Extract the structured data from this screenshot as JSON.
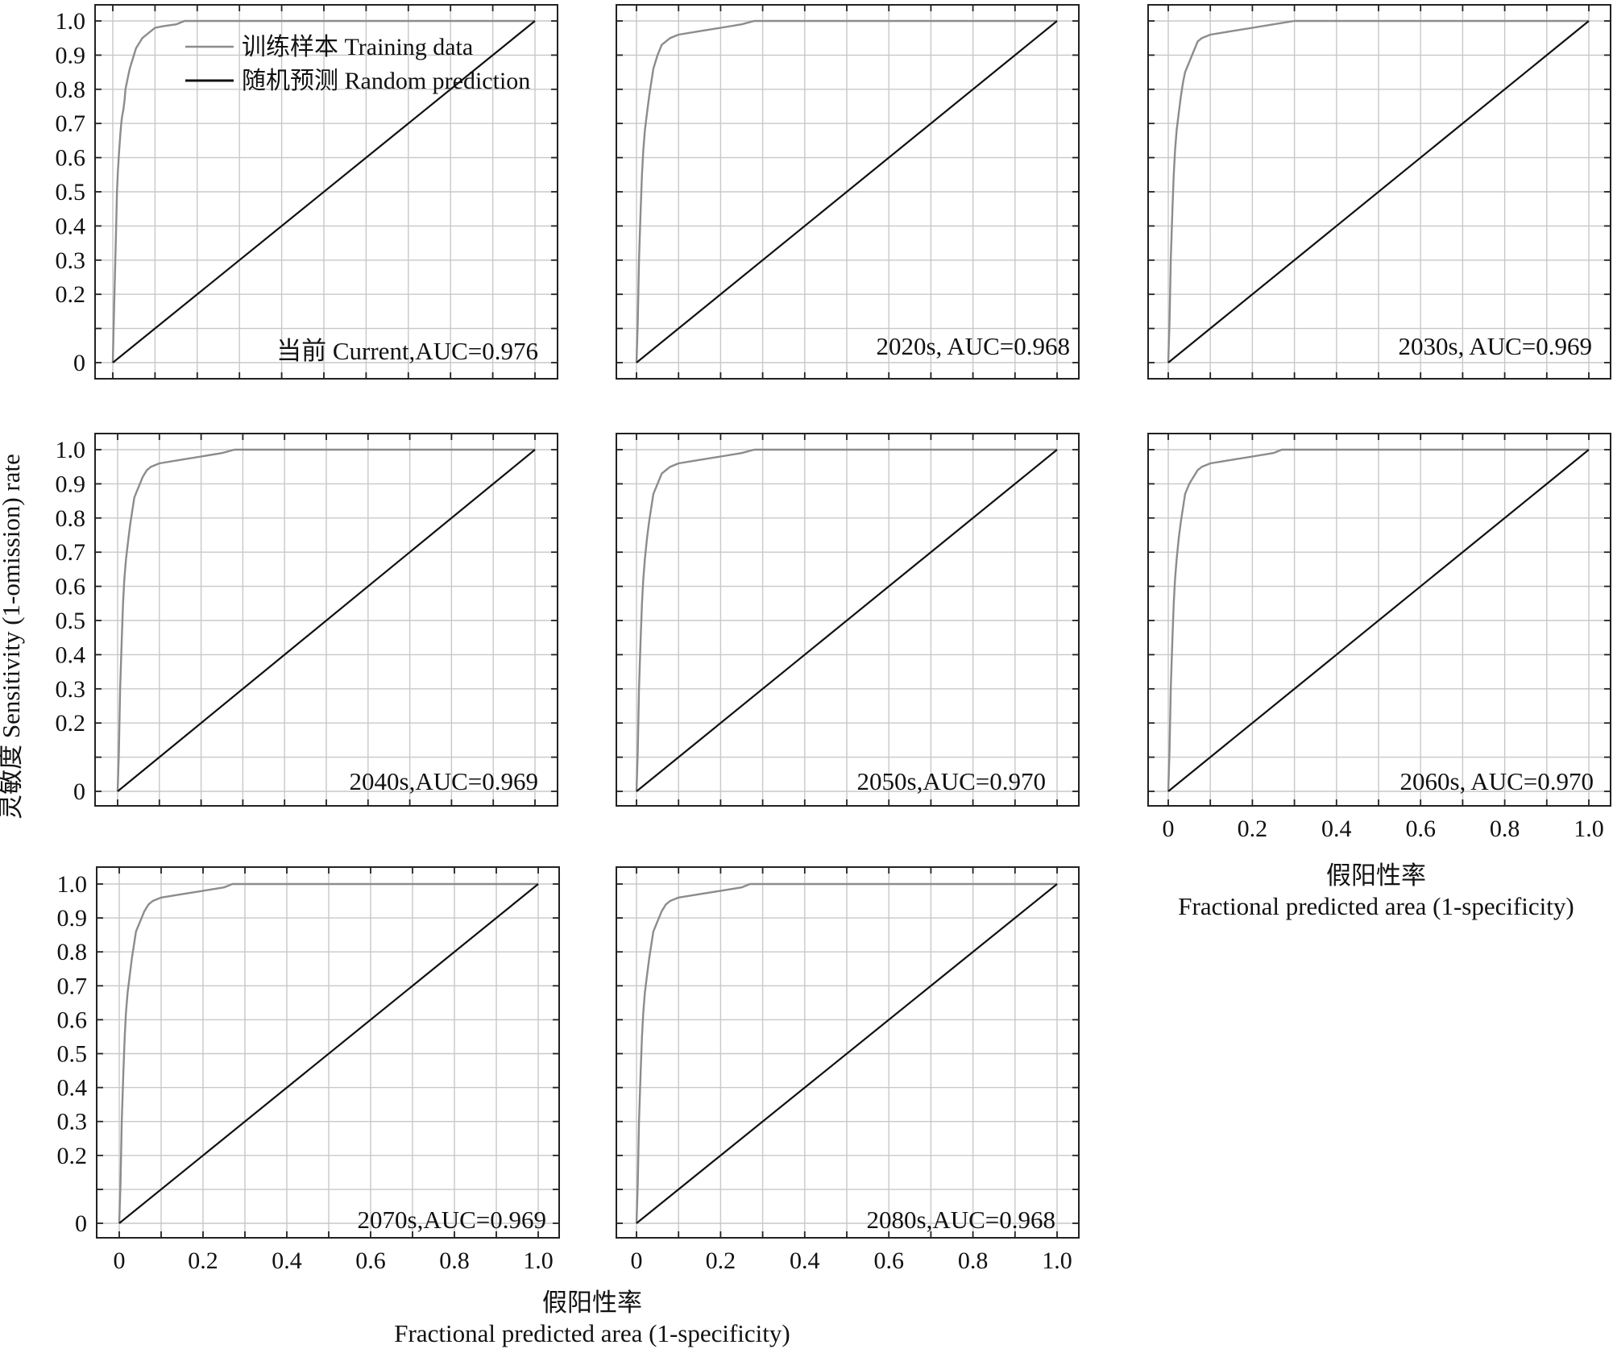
{
  "chart_data": [
    {
      "type": "line",
      "panel": "当前 Current",
      "annotation": "当前 Current,AUC=0.976",
      "auc": 0.976,
      "xlim": [
        0,
        1
      ],
      "ylim": [
        0,
        1
      ],
      "yticks": [
        "0",
        "0.2",
        "0.3",
        "0.4",
        "0.5",
        "0.6",
        "0.7",
        "0.8",
        "0.9",
        "1.0"
      ],
      "series": [
        {
          "name": "训练样本 Training data",
          "x": [
            0,
            0.002,
            0.005,
            0.008,
            0.01,
            0.012,
            0.015,
            0.018,
            0.02,
            0.022,
            0.025,
            0.028,
            0.03,
            0.035,
            0.04,
            0.045,
            0.05,
            0.055,
            0.06,
            0.07,
            0.08,
            0.09,
            0.1,
            0.12,
            0.15,
            0.17,
            0.2,
            1.0
          ],
          "y": [
            0,
            0.1,
            0.25,
            0.4,
            0.5,
            0.56,
            0.62,
            0.67,
            0.7,
            0.72,
            0.74,
            0.77,
            0.8,
            0.83,
            0.86,
            0.88,
            0.9,
            0.92,
            0.93,
            0.95,
            0.96,
            0.97,
            0.98,
            0.985,
            0.99,
            1.0,
            1.0,
            1.0
          ]
        },
        {
          "name": "随机预测 Random prediction",
          "x": [
            0,
            1
          ],
          "y": [
            0,
            1
          ]
        }
      ]
    },
    {
      "type": "line",
      "panel": "2020s",
      "annotation": "2020s, AUC=0.968",
      "auc": 0.968,
      "xlim": [
        0,
        1
      ],
      "ylim": [
        0,
        1
      ],
      "yticks": [],
      "series": [
        {
          "name": "训练样本 Training data",
          "x": [
            0,
            0.003,
            0.006,
            0.01,
            0.013,
            0.016,
            0.02,
            0.025,
            0.03,
            0.035,
            0.04,
            0.05,
            0.06,
            0.07,
            0.08,
            0.1,
            0.15,
            0.2,
            0.25,
            0.28,
            1.0
          ],
          "y": [
            0,
            0.12,
            0.3,
            0.45,
            0.55,
            0.62,
            0.68,
            0.73,
            0.78,
            0.82,
            0.86,
            0.9,
            0.93,
            0.94,
            0.95,
            0.96,
            0.97,
            0.98,
            0.99,
            1.0,
            1.0
          ]
        },
        {
          "name": "随机预测 Random prediction",
          "x": [
            0,
            1
          ],
          "y": [
            0,
            1
          ]
        }
      ]
    },
    {
      "type": "line",
      "panel": "2030s",
      "annotation": "2030s, AUC=0.969",
      "auc": 0.969,
      "xlim": [
        0,
        1
      ],
      "ylim": [
        0,
        1
      ],
      "yticks": [],
      "series": [
        {
          "name": "训练样本 Training data",
          "x": [
            0,
            0.003,
            0.006,
            0.01,
            0.013,
            0.016,
            0.02,
            0.025,
            0.03,
            0.035,
            0.04,
            0.05,
            0.06,
            0.07,
            0.08,
            0.1,
            0.15,
            0.2,
            0.25,
            0.3,
            1.0
          ],
          "y": [
            0,
            0.12,
            0.3,
            0.45,
            0.55,
            0.62,
            0.68,
            0.73,
            0.78,
            0.82,
            0.85,
            0.88,
            0.91,
            0.94,
            0.95,
            0.96,
            0.97,
            0.98,
            0.99,
            1.0,
            1.0
          ]
        },
        {
          "name": "随机预测 Random prediction",
          "x": [
            0,
            1
          ],
          "y": [
            0,
            1
          ]
        }
      ]
    },
    {
      "type": "line",
      "panel": "2040s",
      "annotation": "2040s,AUC=0.969",
      "auc": 0.969,
      "xlim": [
        0,
        1
      ],
      "ylim": [
        0,
        1
      ],
      "yticks": [
        "0",
        "0.2",
        "0.3",
        "0.4",
        "0.5",
        "0.6",
        "0.7",
        "0.8",
        "0.9",
        "1.0"
      ],
      "series": [
        {
          "name": "训练样本 Training data",
          "x": [
            0,
            0.003,
            0.006,
            0.01,
            0.013,
            0.016,
            0.02,
            0.025,
            0.03,
            0.035,
            0.04,
            0.05,
            0.06,
            0.07,
            0.08,
            0.1,
            0.15,
            0.2,
            0.25,
            0.28,
            1.0
          ],
          "y": [
            0,
            0.12,
            0.3,
            0.45,
            0.55,
            0.62,
            0.68,
            0.73,
            0.78,
            0.82,
            0.86,
            0.89,
            0.92,
            0.94,
            0.95,
            0.96,
            0.97,
            0.98,
            0.99,
            1.0,
            1.0
          ]
        },
        {
          "name": "随机预测 Random prediction",
          "x": [
            0,
            1
          ],
          "y": [
            0,
            1
          ]
        }
      ]
    },
    {
      "type": "line",
      "panel": "2050s",
      "annotation": "2050s,AUC=0.970",
      "auc": 0.97,
      "xlim": [
        0,
        1
      ],
      "ylim": [
        0,
        1
      ],
      "yticks": [],
      "series": [
        {
          "name": "训练样本 Training data",
          "x": [
            0,
            0.003,
            0.006,
            0.01,
            0.013,
            0.016,
            0.02,
            0.025,
            0.03,
            0.035,
            0.04,
            0.05,
            0.06,
            0.07,
            0.08,
            0.1,
            0.15,
            0.2,
            0.25,
            0.28,
            1.0
          ],
          "y": [
            0,
            0.12,
            0.3,
            0.45,
            0.55,
            0.62,
            0.68,
            0.74,
            0.79,
            0.83,
            0.87,
            0.9,
            0.93,
            0.94,
            0.95,
            0.96,
            0.97,
            0.98,
            0.99,
            1.0,
            1.0
          ]
        },
        {
          "name": "随机预测 Random prediction",
          "x": [
            0,
            1
          ],
          "y": [
            0,
            1
          ]
        }
      ]
    },
    {
      "type": "line",
      "panel": "2060s",
      "annotation": "2060s, AUC=0.970",
      "auc": 0.97,
      "xlim": [
        0,
        1
      ],
      "ylim": [
        0,
        1
      ],
      "yticks": [],
      "xticks": [
        "0",
        "0.2",
        "0.4",
        "0.6",
        "0.8",
        "1.0"
      ],
      "series": [
        {
          "name": "训练样本 Training data",
          "x": [
            0,
            0.003,
            0.006,
            0.01,
            0.013,
            0.016,
            0.02,
            0.025,
            0.03,
            0.035,
            0.04,
            0.05,
            0.06,
            0.07,
            0.08,
            0.1,
            0.15,
            0.2,
            0.25,
            0.27,
            1.0
          ],
          "y": [
            0,
            0.12,
            0.3,
            0.45,
            0.55,
            0.62,
            0.68,
            0.74,
            0.79,
            0.83,
            0.87,
            0.9,
            0.92,
            0.94,
            0.95,
            0.96,
            0.97,
            0.98,
            0.99,
            1.0,
            1.0
          ]
        },
        {
          "name": "随机预测 Random prediction",
          "x": [
            0,
            1
          ],
          "y": [
            0,
            1
          ]
        }
      ]
    },
    {
      "type": "line",
      "panel": "2070s",
      "annotation": "2070s,AUC=0.969",
      "auc": 0.969,
      "xlim": [
        0,
        1
      ],
      "ylim": [
        0,
        1
      ],
      "yticks": [
        "0",
        "0.2",
        "0.3",
        "0.4",
        "0.5",
        "0.6",
        "0.7",
        "0.8",
        "0.9",
        "1.0"
      ],
      "xticks": [
        "0",
        "0.2",
        "0.4",
        "0.6",
        "0.8",
        "1.0"
      ],
      "series": [
        {
          "name": "训练样本 Training data",
          "x": [
            0,
            0.003,
            0.006,
            0.01,
            0.013,
            0.016,
            0.02,
            0.025,
            0.03,
            0.035,
            0.04,
            0.05,
            0.06,
            0.07,
            0.08,
            0.1,
            0.15,
            0.2,
            0.25,
            0.27,
            1.0
          ],
          "y": [
            0,
            0.12,
            0.3,
            0.45,
            0.55,
            0.62,
            0.68,
            0.73,
            0.78,
            0.82,
            0.86,
            0.89,
            0.92,
            0.94,
            0.95,
            0.96,
            0.97,
            0.98,
            0.99,
            1.0,
            1.0
          ]
        },
        {
          "name": "随机预测 Random prediction",
          "x": [
            0,
            1
          ],
          "y": [
            0,
            1
          ]
        }
      ]
    },
    {
      "type": "line",
      "panel": "2080s",
      "annotation": "2080s,AUC=0.968",
      "auc": 0.968,
      "xlim": [
        0,
        1
      ],
      "ylim": [
        0,
        1
      ],
      "yticks": [],
      "xticks": [
        "0",
        "0.2",
        "0.4",
        "0.6",
        "0.8",
        "1.0"
      ],
      "series": [
        {
          "name": "训练样本 Training data",
          "x": [
            0,
            0.003,
            0.006,
            0.01,
            0.013,
            0.016,
            0.02,
            0.025,
            0.03,
            0.035,
            0.04,
            0.05,
            0.06,
            0.07,
            0.08,
            0.1,
            0.15,
            0.2,
            0.25,
            0.27,
            1.0
          ],
          "y": [
            0,
            0.12,
            0.3,
            0.45,
            0.55,
            0.62,
            0.68,
            0.73,
            0.78,
            0.82,
            0.86,
            0.89,
            0.92,
            0.94,
            0.95,
            0.96,
            0.97,
            0.98,
            0.99,
            1.0,
            1.0
          ]
        },
        {
          "name": "随机预测 Random prediction",
          "x": [
            0,
            1
          ],
          "y": [
            0,
            1
          ]
        }
      ]
    }
  ],
  "legend": {
    "training": "训练样本 Training data",
    "random": "随机预测 Random prediction"
  },
  "axes": {
    "ylabel": "灵敏度 Sensitivity (1-omission) rate",
    "xlabel_cn": "假阳性率",
    "xlabel_en": "Fractional predicted area (1-specificity)"
  },
  "colors": {
    "training": "#8c8c8c",
    "random": "#111111",
    "grid": "#c8c8c8",
    "frame": "#222222"
  }
}
